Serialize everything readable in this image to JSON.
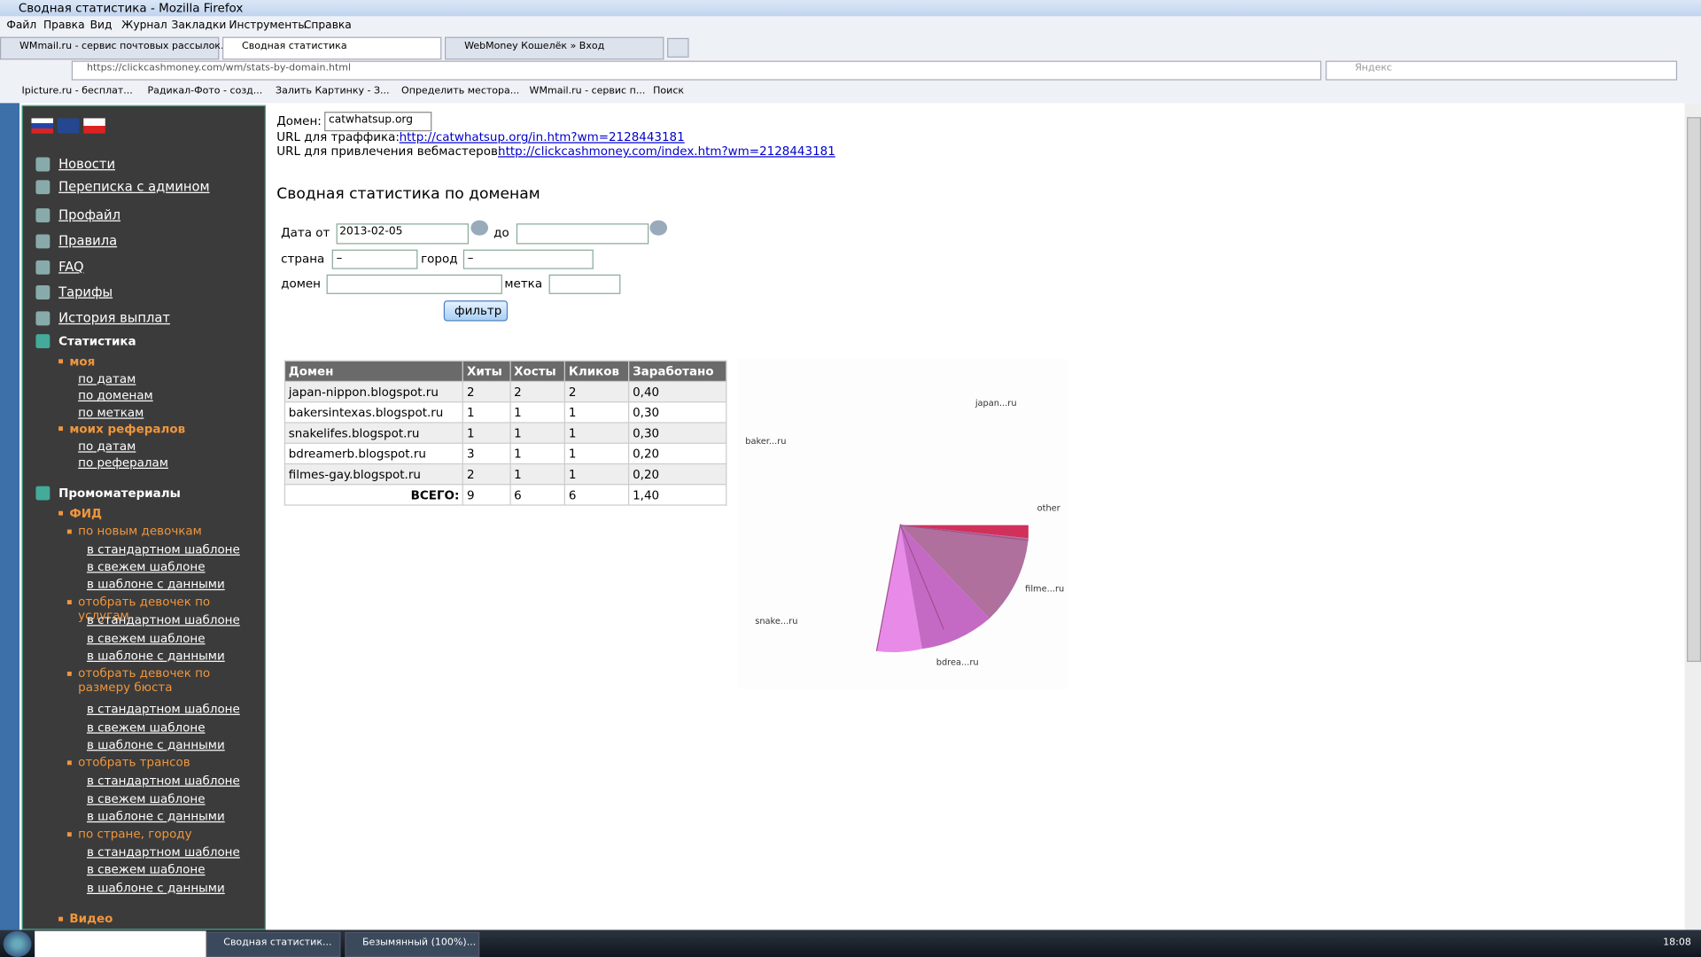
{
  "window": {
    "title": "Сводная статистика - Mozilla Firefox"
  },
  "menu": [
    "Файл",
    "Правка",
    "Вид",
    "Журнал",
    "Закладки",
    "Инструменты",
    "Справка"
  ],
  "tabs": [
    "WMmail.ru - сервис почтовых рассылок...",
    "Сводная статистика",
    "WebMoney Кошелёк » Вход"
  ],
  "address": {
    "url": "https://clickcashmoney.com/wm/stats-by-domain.html",
    "search": "Яндекс"
  },
  "bookmarks": [
    "Ipicture.ru - бесплат...",
    "Радикал-Фото - созд...",
    "Залить Картинку - З...",
    "Определить местора...",
    "WMmail.ru - сервис п...",
    "Поиск"
  ],
  "sidebar": {
    "nav": [
      "Новости",
      "Переписка с админом",
      "Профайл",
      "Правила",
      "FAQ",
      "Тарифы",
      "История выплат"
    ],
    "sections": [
      {
        "title": "Статистика",
        "groups": [
          {
            "title": "моя",
            "links": [
              "по датам",
              "по доменам",
              "по меткам"
            ]
          },
          {
            "title": "моих рефералов",
            "links": [
              "по датам",
              "по рефералам"
            ]
          }
        ]
      },
      {
        "title": "Промоматериалы",
        "groups": [
          {
            "title": "ФИД",
            "subgroups": [
              {
                "title": "по новым девочкам",
                "links": [
                  "в стандартном шаблоне",
                  "в свежем шаблоне",
                  "в шаблоне с данными"
                ]
              },
              {
                "title": "отобрать девочек по услугам",
                "links": [
                  "в стандартном шаблоне",
                  "в свежем шаблоне",
                  "в шаблоне с данными"
                ]
              },
              {
                "title": "отобрать девочек по размеру бюста",
                "links": [
                  "в стандартном шаблоне",
                  "в свежем шаблоне",
                  "в шаблоне с данными"
                ]
              },
              {
                "title": "отобрать трансов",
                "links": [
                  "в стандартном шаблоне",
                  "в свежем шаблоне",
                  "в шаблоне с данными"
                ]
              },
              {
                "title": "по стране, городу",
                "links": [
                  "в стандартном шаблоне",
                  "в свежем шаблоне",
                  "в шаблоне с данными"
                ]
              }
            ]
          }
        ]
      }
    ],
    "video": "Видео"
  },
  "content": {
    "domain_label": "Домен:",
    "domain": "catwhatsup.org",
    "traffic_label": "URL для траффика:",
    "traffic_url": "http://catwhatsup.org/in.htm?wm=2128443181",
    "ref_label": "URL для привлечения вебмастеров:",
    "ref_url": "http://clickcashmoney.com/index.htm?wm=2128443181",
    "heading": "Сводная статистика по доменам",
    "filter": {
      "date_from_label": "Дата от",
      "date_from": "2013-02-05",
      "date_to_label": "до",
      "country_label": "страна",
      "country": "–",
      "city_label": "город",
      "city": "–",
      "domain_label": "домен",
      "tag_label": "метка",
      "button": "фильтр"
    },
    "table": {
      "columns": [
        "Домен",
        "Хиты",
        "Хосты",
        "Кликов",
        "Заработано"
      ],
      "rows": [
        [
          "japan-nippon.blogspot.ru",
          2,
          2,
          2,
          "0,40"
        ],
        [
          "bakersintexas.blogspot.ru",
          1,
          1,
          1,
          "0,30"
        ],
        [
          "snakelifes.blogspot.ru",
          1,
          1,
          1,
          "0,30"
        ],
        [
          "bdreamerb.blogspot.ru",
          3,
          1,
          1,
          "0,20"
        ],
        [
          "filmes-gay.blogspot.ru",
          2,
          1,
          1,
          "0,20"
        ]
      ],
      "total_label": "ВСЕГО:",
      "total": [
        9,
        6,
        6,
        "1,40"
      ]
    },
    "pie_labels": [
      "japan...ru",
      "baker...ru",
      "other",
      "filme...ru",
      "snake...ru",
      "bdrea...ru"
    ]
  },
  "taskbar": {
    "items": [
      "Сводная статистик...",
      "Безымянный (100%)..."
    ],
    "clock": "18:08"
  }
}
